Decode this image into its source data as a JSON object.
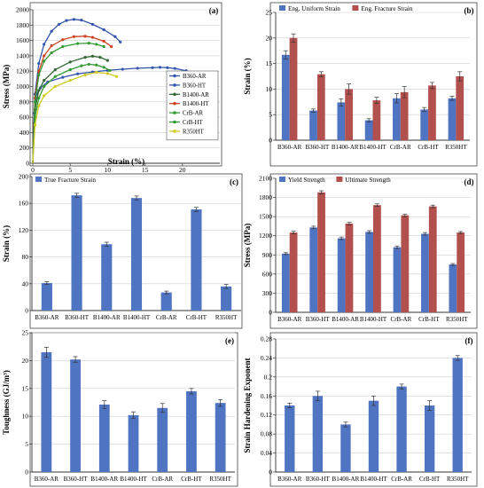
{
  "chart_data": [
    {
      "panel": "(a)",
      "type": "line",
      "xlabel": "Strain (%)",
      "ylabel": "Stress (MPa)",
      "xlim": [
        0,
        25
      ],
      "ylim": [
        0,
        2000
      ],
      "xticks": [
        0,
        5,
        10,
        15,
        20
      ],
      "yticks": [
        0,
        200,
        400,
        600,
        800,
        1000,
        1200,
        1400,
        1600,
        1800,
        2000
      ],
      "legend": "right",
      "series": [
        {
          "name": "B360-AR",
          "color": "#3355aa",
          "points": [
            [
              0,
              0
            ],
            [
              0.2,
              650
            ],
            [
              0.5,
              900
            ],
            [
              1,
              980
            ],
            [
              2,
              1060
            ],
            [
              4,
              1120
            ],
            [
              6,
              1165
            ],
            [
              8,
              1190
            ],
            [
              10,
              1210
            ],
            [
              12,
              1225
            ],
            [
              14,
              1238
            ],
            [
              16,
              1245
            ],
            [
              17,
              1250
            ],
            [
              18,
              1245
            ],
            [
              19,
              1235
            ],
            [
              20.5,
              1205
            ]
          ]
        },
        {
          "name": "B360-HT",
          "color": "#3355aa",
          "points": [
            [
              0,
              0
            ],
            [
              0.3,
              900
            ],
            [
              0.8,
              1300
            ],
            [
              1.5,
              1550
            ],
            [
              2.5,
              1720
            ],
            [
              3.5,
              1810
            ],
            [
              4.5,
              1860
            ],
            [
              5.5,
              1875
            ],
            [
              6.5,
              1865
            ],
            [
              8,
              1810
            ],
            [
              9.5,
              1740
            ],
            [
              11,
              1650
            ],
            [
              11.7,
              1580
            ]
          ]
        },
        {
          "name": "B1400-AR",
          "color": "#336633",
          "points": [
            [
              0,
              0
            ],
            [
              0.3,
              700
            ],
            [
              0.8,
              950
            ],
            [
              1.5,
              1080
            ],
            [
              3,
              1220
            ],
            [
              5,
              1320
            ],
            [
              7,
              1380
            ],
            [
              8,
              1395
            ],
            [
              9,
              1380
            ],
            [
              10,
              1340
            ]
          ]
        },
        {
          "name": "B1400-HT",
          "color": "#cc4422",
          "points": [
            [
              0,
              0
            ],
            [
              0.3,
              850
            ],
            [
              0.8,
              1200
            ],
            [
              1.5,
              1400
            ],
            [
              2.5,
              1530
            ],
            [
              4,
              1610
            ],
            [
              5.5,
              1650
            ],
            [
              7,
              1655
            ],
            [
              8,
              1640
            ],
            [
              9.5,
              1590
            ],
            [
              10.5,
              1520
            ]
          ]
        },
        {
          "name": "CrB-AR",
          "color": "#339933",
          "points": [
            [
              0,
              0
            ],
            [
              0.3,
              600
            ],
            [
              0.8,
              850
            ],
            [
              1.5,
              1000
            ],
            [
              3,
              1130
            ],
            [
              5,
              1220
            ],
            [
              6.5,
              1270
            ],
            [
              7.5,
              1290
            ],
            [
              8.5,
              1280
            ],
            [
              9.5,
              1250
            ],
            [
              10.3,
              1210
            ]
          ]
        },
        {
          "name": "CrB-HT",
          "color": "#339933",
          "points": [
            [
              0,
              0
            ],
            [
              0.3,
              800
            ],
            [
              0.8,
              1150
            ],
            [
              1.5,
              1330
            ],
            [
              2.5,
              1440
            ],
            [
              4,
              1520
            ],
            [
              6,
              1560
            ],
            [
              7.5,
              1565
            ],
            [
              8.5,
              1550
            ],
            [
              9.5,
              1520
            ]
          ]
        },
        {
          "name": "R350HT",
          "color": "#cccc22",
          "points": [
            [
              0,
              0
            ],
            [
              0.3,
              500
            ],
            [
              0.8,
              750
            ],
            [
              1.5,
              880
            ],
            [
              3,
              1000
            ],
            [
              5,
              1080
            ],
            [
              7,
              1150
            ],
            [
              8.5,
              1185
            ],
            [
              10,
              1170
            ],
            [
              11.2,
              1130
            ]
          ]
        }
      ]
    },
    {
      "panel": "(b)",
      "type": "bar",
      "xlabel": "",
      "ylabel": "Strain (%)",
      "ylim": [
        0,
        25
      ],
      "yticks": [
        0,
        5,
        10,
        15,
        20,
        25
      ],
      "legend": "top-left",
      "categories": [
        "B360-AR",
        "B360-HT",
        "B1400-AR",
        "B1400-HT",
        "CrB-AR",
        "CrB-HT",
        "R350HT"
      ],
      "series": [
        {
          "name": "Eng. Uniform Strain",
          "color": "#4f74c2",
          "values": [
            16.7,
            5.8,
            7.4,
            3.9,
            8.2,
            6.0,
            8.2
          ],
          "errors": [
            0.8,
            0.3,
            0.7,
            0.3,
            0.9,
            0.4,
            0.4
          ]
        },
        {
          "name": "Eng. Fracture Strain",
          "color": "#b2504e",
          "values": [
            20.0,
            12.9,
            10.0,
            7.8,
            9.4,
            10.7,
            12.5
          ],
          "errors": [
            0.8,
            0.5,
            1.0,
            0.6,
            1.1,
            0.6,
            0.9
          ]
        }
      ]
    },
    {
      "panel": "(c)",
      "type": "bar",
      "xlabel": "",
      "ylabel": "Strain (%)",
      "ylim": [
        0,
        200
      ],
      "yticks": [
        0,
        40,
        80,
        120,
        160,
        200
      ],
      "legend": "top-left",
      "categories": [
        "B360-AR",
        "B360-HT",
        "B1400-AR",
        "B1400-HT",
        "CrB-AR",
        "CrB-HT",
        "R350HT"
      ],
      "series": [
        {
          "name": "True Fracture Strain",
          "color": "#4f74c2",
          "values": [
            41,
            172,
            99,
            168,
            27,
            151,
            36
          ],
          "errors": [
            2,
            3,
            3,
            3,
            2,
            3,
            3
          ]
        }
      ]
    },
    {
      "panel": "(d)",
      "type": "bar",
      "xlabel": "",
      "ylabel": "Stress (MPa)",
      "ylim": [
        0,
        2100
      ],
      "yticks": [
        0,
        300,
        600,
        900,
        1200,
        1500,
        1800,
        2100
      ],
      "legend": "top-left",
      "categories": [
        "B360-AR",
        "B360-HT",
        "B1400-AR",
        "B1400-HT",
        "CrB-AR",
        "CrB-HT",
        "R350HT"
      ],
      "series": [
        {
          "name": "Yield Strength",
          "color": "#4f74c2",
          "values": [
            920,
            1330,
            1160,
            1260,
            1020,
            1230,
            750
          ],
          "errors": [
            15,
            20,
            20,
            20,
            20,
            20,
            15
          ]
        },
        {
          "name": "Ultimate Strength",
          "color": "#b2504e",
          "values": [
            1250,
            1880,
            1390,
            1680,
            1520,
            1660,
            1250
          ],
          "errors": [
            20,
            25,
            20,
            20,
            20,
            20,
            15
          ]
        }
      ]
    },
    {
      "panel": "(e)",
      "type": "bar",
      "xlabel": "",
      "ylabel": "Toughness (GJ/m³)",
      "ylim": [
        0,
        25
      ],
      "yticks": [
        0,
        5,
        10,
        15,
        20,
        25
      ],
      "categories": [
        "B360-AR",
        "B360-HT",
        "B1400-AR",
        "B1400-HT",
        "CrB-AR",
        "CrB-HT",
        "R350HT"
      ],
      "series": [
        {
          "name": "",
          "color": "#4f74c2",
          "values": [
            21.5,
            20.2,
            12.1,
            10.2,
            11.5,
            14.5,
            12.4
          ],
          "errors": [
            0.9,
            0.5,
            0.7,
            0.6,
            0.8,
            0.5,
            0.6
          ]
        }
      ]
    },
    {
      "panel": "(f)",
      "type": "bar",
      "xlabel": "",
      "ylabel": "Strain Hardening Exponent",
      "ylim": [
        0,
        0.28
      ],
      "yticks": [
        0,
        0.04,
        0.08,
        0.12,
        0.16,
        0.2,
        0.24,
        0.28
      ],
      "categories": [
        "B360-AR",
        "B360-HT",
        "B1400-AR",
        "B1400-HT",
        "CrB-AR",
        "CrB-HT",
        "R350HT"
      ],
      "series": [
        {
          "name": "",
          "color": "#4f74c2",
          "values": [
            0.14,
            0.16,
            0.1,
            0.15,
            0.18,
            0.14,
            0.24
          ],
          "errors": [
            0.005,
            0.01,
            0.005,
            0.01,
            0.005,
            0.01,
            0.005
          ]
        }
      ]
    }
  ]
}
